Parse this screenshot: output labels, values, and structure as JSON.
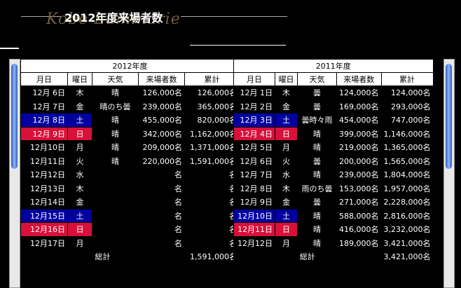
{
  "header": {
    "title": "2012年度来場者数",
    "logo_text": "Kobe Luminarie"
  },
  "tables": [
    {
      "caption": "2012年度",
      "columns": [
        "月日",
        "曜日",
        "天気",
        "来場者数",
        "累計"
      ],
      "rows": [
        {
          "date": "12月 6日",
          "dow": "木",
          "weather": "晴",
          "visitors": "126,000名",
          "cumulative": "126,000名",
          "type": "normal"
        },
        {
          "date": "12月 7日",
          "dow": "金",
          "weather": "晴のち曇",
          "visitors": "239,000名",
          "cumulative": "365,000名",
          "type": "normal"
        },
        {
          "date": "12月 8日",
          "dow": "土",
          "weather": "晴",
          "visitors": "455,000名",
          "cumulative": "820,000名",
          "type": "sat"
        },
        {
          "date": "12月 9日",
          "dow": "日",
          "weather": "晴",
          "visitors": "342,000名",
          "cumulative": "1,162,000名",
          "type": "sun"
        },
        {
          "date": "12月10日",
          "dow": "月",
          "weather": "晴",
          "visitors": "209,000名",
          "cumulative": "1,371,000名",
          "type": "normal"
        },
        {
          "date": "12月11日",
          "dow": "火",
          "weather": "晴",
          "visitors": "220,000名",
          "cumulative": "1,591,000名",
          "type": "normal"
        },
        {
          "date": "12月12日",
          "dow": "水",
          "weather": "",
          "visitors": "名",
          "cumulative": "名",
          "type": "normal"
        },
        {
          "date": "12月13日",
          "dow": "木",
          "weather": "",
          "visitors": "名",
          "cumulative": "名",
          "type": "normal"
        },
        {
          "date": "12月14日",
          "dow": "金",
          "weather": "",
          "visitors": "名",
          "cumulative": "名",
          "type": "normal"
        },
        {
          "date": "12月15日",
          "dow": "土",
          "weather": "",
          "visitors": "名",
          "cumulative": "名",
          "type": "sat"
        },
        {
          "date": "12月16日",
          "dow": "日",
          "weather": "",
          "visitors": "名",
          "cumulative": "名",
          "type": "sun"
        },
        {
          "date": "12月17日",
          "dow": "月",
          "weather": "",
          "visitors": "名",
          "cumulative": "名",
          "type": "normal"
        }
      ],
      "total_label": "総計",
      "total_value": "1,591,000名"
    },
    {
      "caption": "2011年度",
      "columns": [
        "月日",
        "曜日",
        "天気",
        "来場者数",
        "累計"
      ],
      "rows": [
        {
          "date": "12月 1日",
          "dow": "木",
          "weather": "曇",
          "visitors": "124,000名",
          "cumulative": "124,000名",
          "type": "normal"
        },
        {
          "date": "12月 2日",
          "dow": "金",
          "weather": "曇",
          "visitors": "169,000名",
          "cumulative": "293,000名",
          "type": "normal"
        },
        {
          "date": "12月 3日",
          "dow": "土",
          "weather": "曇時々雨",
          "visitors": "454,000名",
          "cumulative": "747,000名",
          "type": "sat"
        },
        {
          "date": "12月 4日",
          "dow": "日",
          "weather": "晴",
          "visitors": "399,000名",
          "cumulative": "1,146,000名",
          "type": "sun"
        },
        {
          "date": "12月 5日",
          "dow": "月",
          "weather": "晴",
          "visitors": "219,000名",
          "cumulative": "1,365,000名",
          "type": "normal"
        },
        {
          "date": "12月 6日",
          "dow": "火",
          "weather": "曇",
          "visitors": "200,000名",
          "cumulative": "1,565,000名",
          "type": "normal"
        },
        {
          "date": "12月 7日",
          "dow": "水",
          "weather": "晴",
          "visitors": "239,000名",
          "cumulative": "1,804,000名",
          "type": "normal"
        },
        {
          "date": "12月 8日",
          "dow": "木",
          "weather": "雨のち曇",
          "visitors": "153,000名",
          "cumulative": "1,957,000名",
          "type": "normal"
        },
        {
          "date": "12月 9日",
          "dow": "金",
          "weather": "曇",
          "visitors": "271,000名",
          "cumulative": "2,228,000名",
          "type": "normal"
        },
        {
          "date": "12月10日",
          "dow": "土",
          "weather": "晴",
          "visitors": "588,000名",
          "cumulative": "2,816,000名",
          "type": "sat"
        },
        {
          "date": "12月11日",
          "dow": "日",
          "weather": "晴",
          "visitors": "416,000名",
          "cumulative": "3,232,000名",
          "type": "sun"
        },
        {
          "date": "12月12日",
          "dow": "月",
          "weather": "晴",
          "visitors": "189,000名",
          "cumulative": "3,421,000名",
          "type": "normal"
        }
      ],
      "total_label": "総計",
      "total_value": "3,421,000名"
    }
  ]
}
